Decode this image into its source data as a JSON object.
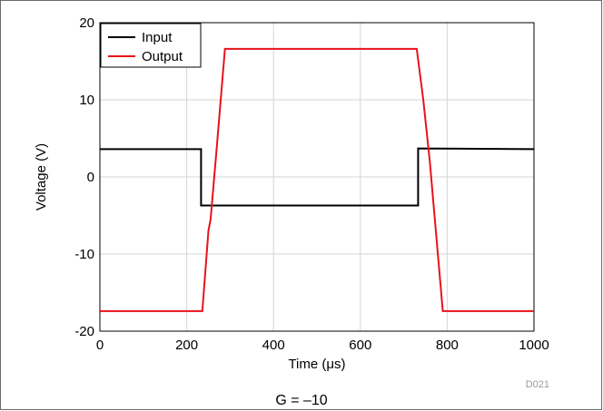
{
  "chart_data": {
    "type": "line",
    "xlabel": "Time (μs)",
    "ylabel": "Voltage (V)",
    "xlim": [
      0,
      1000
    ],
    "ylim": [
      -20,
      20
    ],
    "x_ticks": [
      0,
      200,
      400,
      600,
      800,
      1000
    ],
    "y_ticks": [
      -20,
      -10,
      0,
      10,
      20
    ],
    "x_tick_labels": [
      "0",
      "200",
      "400",
      "600",
      "800",
      "1000"
    ],
    "y_tick_labels": [
      "-20",
      "-10",
      "0",
      "10",
      "20"
    ],
    "grid": true,
    "legend_position": "top-left",
    "series": [
      {
        "name": "Input",
        "color": "#000000",
        "x": [
          0,
          233,
          233,
          733,
          733,
          1000
        ],
        "y": [
          3.6,
          3.6,
          -3.7,
          -3.7,
          3.7,
          3.6
        ]
      },
      {
        "name": "Output",
        "color": "#e8121a",
        "x": [
          0,
          236,
          250,
          255,
          268,
          288,
          730,
          745,
          760,
          790,
          1000
        ],
        "y": [
          -17.4,
          -17.4,
          -7,
          -5.5,
          3,
          16.6,
          16.6,
          10,
          2,
          -17.4,
          -17.4
        ]
      }
    ],
    "figure_code": "D021",
    "caption": "G = –10"
  }
}
